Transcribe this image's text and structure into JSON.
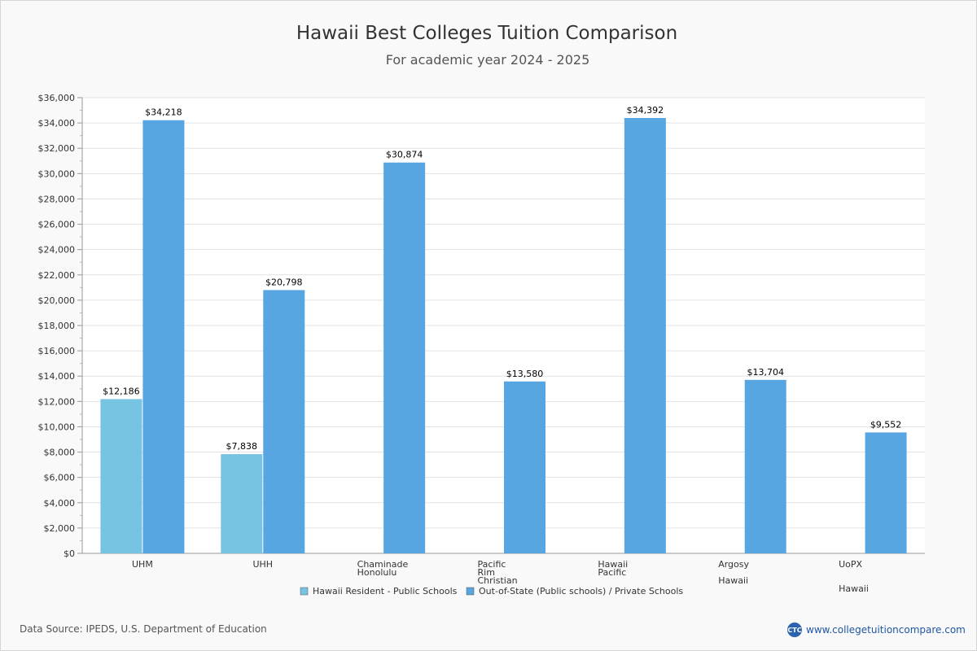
{
  "chart_data": {
    "type": "bar",
    "title": "Hawaii Best Colleges Tuition Comparison",
    "subtitle": "For academic year 2024 - 2025",
    "ylim": [
      0,
      36000
    ],
    "ytick_step": 2000,
    "ytick_labels": [
      "$0",
      "$2,000",
      "$4,000",
      "$6,000",
      "$8,000",
      "$10,000",
      "$12,000",
      "$14,000",
      "$16,000",
      "$18,000",
      "$20,000",
      "$22,000",
      "$24,000",
      "$26,000",
      "$28,000",
      "$30,000",
      "$32,000",
      "$34,000",
      "$36,000"
    ],
    "grid": true,
    "legend_position": "bottom",
    "categories": [
      [
        "UHM"
      ],
      [
        "UHH"
      ],
      [
        "Chaminade",
        "Honolulu"
      ],
      [
        "Pacific",
        "Rim",
        "Christian"
      ],
      [
        "Hawaii",
        "Pacific"
      ],
      [
        "Argosy",
        "",
        "Hawaii"
      ],
      [
        "UoPX",
        "",
        "",
        "Hawaii"
      ]
    ],
    "series": [
      {
        "name": "Hawaii Resident - Public Schools",
        "color": "#76c4e2",
        "values": [
          12186,
          7838,
          null,
          null,
          null,
          null,
          null
        ],
        "labels": [
          "$12,186",
          "$7,838",
          "",
          "",
          "",
          "",
          ""
        ]
      },
      {
        "name": "Out-of-State (Public schools) / Private Schools",
        "color": "#57a6e2",
        "values": [
          34218,
          20798,
          30874,
          13580,
          34392,
          13704,
          9552
        ],
        "labels": [
          "$34,218",
          "$20,798",
          "$30,874",
          "$13,580",
          "$34,392",
          "$13,704",
          "$9,552"
        ]
      }
    ]
  },
  "footer": {
    "source": "Data Source: IPEDS, U.S. Department of Education",
    "brand": "www.collegetuitioncompare.com",
    "logo_text": "CTC"
  }
}
